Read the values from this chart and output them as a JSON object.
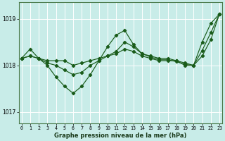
{
  "title": "Graphe pression niveau de la mer (hPa)",
  "bg_color": "#c8ece8",
  "grid_color": "#ffffff",
  "line_color": "#1a5c1a",
  "x_ticks": [
    0,
    1,
    2,
    3,
    4,
    5,
    6,
    7,
    8,
    9,
    10,
    11,
    12,
    13,
    14,
    15,
    16,
    17,
    18,
    19,
    20,
    21,
    22,
    23
  ],
  "y_ticks": [
    1017,
    1018,
    1019
  ],
  "ylim": [
    1016.75,
    1019.35
  ],
  "xlim": [
    -0.3,
    23.3
  ],
  "series": [
    {
      "x": [
        0,
        1,
        2,
        3,
        4,
        5,
        6,
        7,
        8,
        9,
        10,
        11,
        12,
        13,
        14,
        15,
        16,
        17,
        18,
        19,
        20,
        21,
        22,
        23
      ],
      "y": [
        1018.15,
        1018.35,
        1018.15,
        1018.0,
        1017.75,
        1017.55,
        1017.4,
        1017.55,
        1017.8,
        1018.1,
        1018.4,
        1018.65,
        1018.75,
        1018.45,
        1018.25,
        1018.2,
        1018.15,
        1018.15,
        1018.1,
        1018.0,
        1018.0,
        1018.5,
        1018.9,
        1019.1
      ]
    },
    {
      "x": [
        0,
        1,
        2,
        3,
        4,
        5,
        6,
        7,
        8,
        9,
        10,
        11,
        12,
        13,
        14,
        15,
        16,
        17,
        18,
        19,
        20,
        21,
        22,
        23
      ],
      "y": [
        1018.15,
        1018.2,
        1018.15,
        1018.1,
        1018.1,
        1018.1,
        1018.0,
        1018.05,
        1018.1,
        1018.15,
        1018.2,
        1018.25,
        1018.35,
        1018.3,
        1018.2,
        1018.15,
        1018.1,
        1018.1,
        1018.1,
        1018.05,
        1018.0,
        1018.2,
        1018.55,
        1019.1
      ]
    },
    {
      "x": [
        0,
        1,
        2,
        3,
        4,
        5,
        6,
        7,
        8,
        9,
        10,
        11,
        12,
        13,
        14,
        15,
        16,
        17,
        18,
        19,
        20,
        21,
        22,
        23
      ],
      "y": [
        1018.15,
        1018.2,
        1018.15,
        1018.05,
        1018.0,
        1017.9,
        1017.8,
        1017.85,
        1018.0,
        1018.1,
        1018.2,
        1018.3,
        1018.5,
        1018.4,
        1018.25,
        1018.18,
        1018.12,
        1018.12,
        1018.08,
        1018.02,
        1018.0,
        1018.32,
        1018.7,
        1019.1
      ]
    }
  ]
}
